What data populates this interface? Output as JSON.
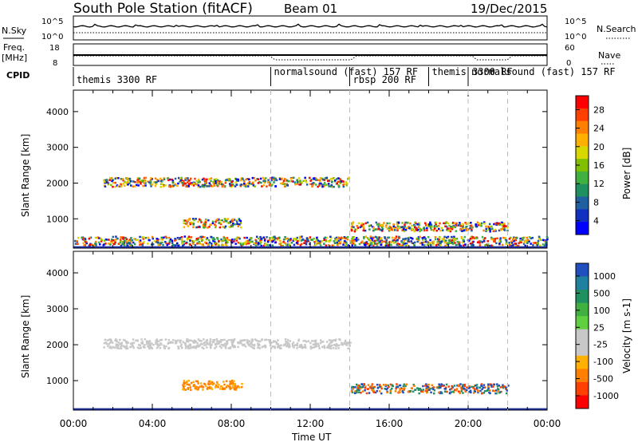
{
  "header": {
    "station": "South Pole Station (fitACF)",
    "beam": "Beam 01",
    "date": "19/Dec/2015"
  },
  "aux_panels": {
    "left_labels": [
      "N.Sky",
      "Freq.",
      "[MHz]",
      "CPID"
    ],
    "right_labels": [
      "N.Search",
      "Nave"
    ],
    "nsky_ticks": [
      "10^5",
      "10^0"
    ],
    "freq_ticks": [
      "18",
      "8"
    ],
    "nave_ticks": [
      "60",
      "0"
    ],
    "cpid_segments": [
      {
        "label": "themis 3300 RF",
        "start_hour": 0,
        "end_hour": 10
      },
      {
        "label": "normalsound (fast) 157 RF",
        "start_hour": 10,
        "end_hour": 14
      },
      {
        "label": "rbsp 200 RF",
        "start_hour": 14,
        "end_hour": 18
      },
      {
        "label": "themis 3300 RF",
        "start_hour": 18,
        "end_hour": 20
      },
      {
        "label": "normalsound (fast) 157 RF",
        "start_hour": 20,
        "end_hour": 24
      }
    ]
  },
  "colorbars": {
    "power": {
      "label": "Power [dB]",
      "ticks": [
        "28",
        "24",
        "20",
        "16",
        "12",
        "8",
        "4"
      ],
      "colors": [
        "#ff0000",
        "#ff4000",
        "#ff8000",
        "#ffb000",
        "#d8d800",
        "#80c000",
        "#40b040",
        "#209060",
        "#2060a0",
        "#1030c0",
        "#0000ff"
      ]
    },
    "velocity": {
      "label": "Velocity [m s-1]",
      "ticks": [
        "1000",
        "500",
        "100",
        "25",
        "-25",
        "-100",
        "-500",
        "-1000"
      ],
      "colors": [
        "#2050c0",
        "#2080a0",
        "#209060",
        "#40b040",
        "#60d040",
        "#c8c8c8",
        "#c8c8c8",
        "#ffb000",
        "#ff8000",
        "#ff4000",
        "#ff0000"
      ]
    }
  },
  "chart_data": [
    {
      "type": "heatmap",
      "title": "Power",
      "xlabel": "Time UT",
      "ylabel": "Slant Range [km]",
      "xlim_hours": [
        0,
        24
      ],
      "ylim_km": [
        180,
        4600
      ],
      "x_ticks": [
        "00:00",
        "04:00",
        "08:00",
        "12:00",
        "16:00",
        "20:00",
        "00:00"
      ],
      "y_ticks": [
        "1000",
        "2000",
        "3000",
        "4000"
      ],
      "colorbar": "power",
      "features": [
        {
          "name": "2000 km band",
          "start_hour": 1.5,
          "end_hour": 14,
          "range_km": 2050,
          "value_db": 14
        },
        {
          "name": "low-range echoes",
          "start_hour": 0,
          "end_hour": 24,
          "range_km": 400,
          "value_db": 20
        },
        {
          "name": "arc 06-08 UT",
          "start_hour": 5.5,
          "end_hour": 8.5,
          "range_km": 900,
          "value_db": 22
        },
        {
          "name": "afternoon cluster",
          "start_hour": 14,
          "end_hour": 22,
          "range_km": 800,
          "value_db": 18
        }
      ]
    },
    {
      "type": "heatmap",
      "title": "Velocity",
      "xlabel": "Time UT",
      "ylabel": "Slant Range [km]",
      "xlim_hours": [
        0,
        24
      ],
      "ylim_km": [
        180,
        4600
      ],
      "x_ticks": [
        "00:00",
        "04:00",
        "08:00",
        "12:00",
        "16:00",
        "20:00",
        "00:00"
      ],
      "y_ticks": [
        "1000",
        "2000",
        "3000",
        "4000"
      ],
      "colorbar": "velocity",
      "features": [
        {
          "name": "2000 km band",
          "start_hour": 1.5,
          "end_hour": 14,
          "range_km": 2050,
          "value_ms": 0
        },
        {
          "name": "arc 06-08 UT",
          "start_hour": 5.5,
          "end_hour": 8.5,
          "range_km": 900,
          "value_ms": -300
        },
        {
          "name": "afternoon cluster",
          "start_hour": 14,
          "end_hour": 22,
          "range_km": 800,
          "value_ms": 400
        }
      ]
    }
  ],
  "xaxis_label": "Time UT"
}
